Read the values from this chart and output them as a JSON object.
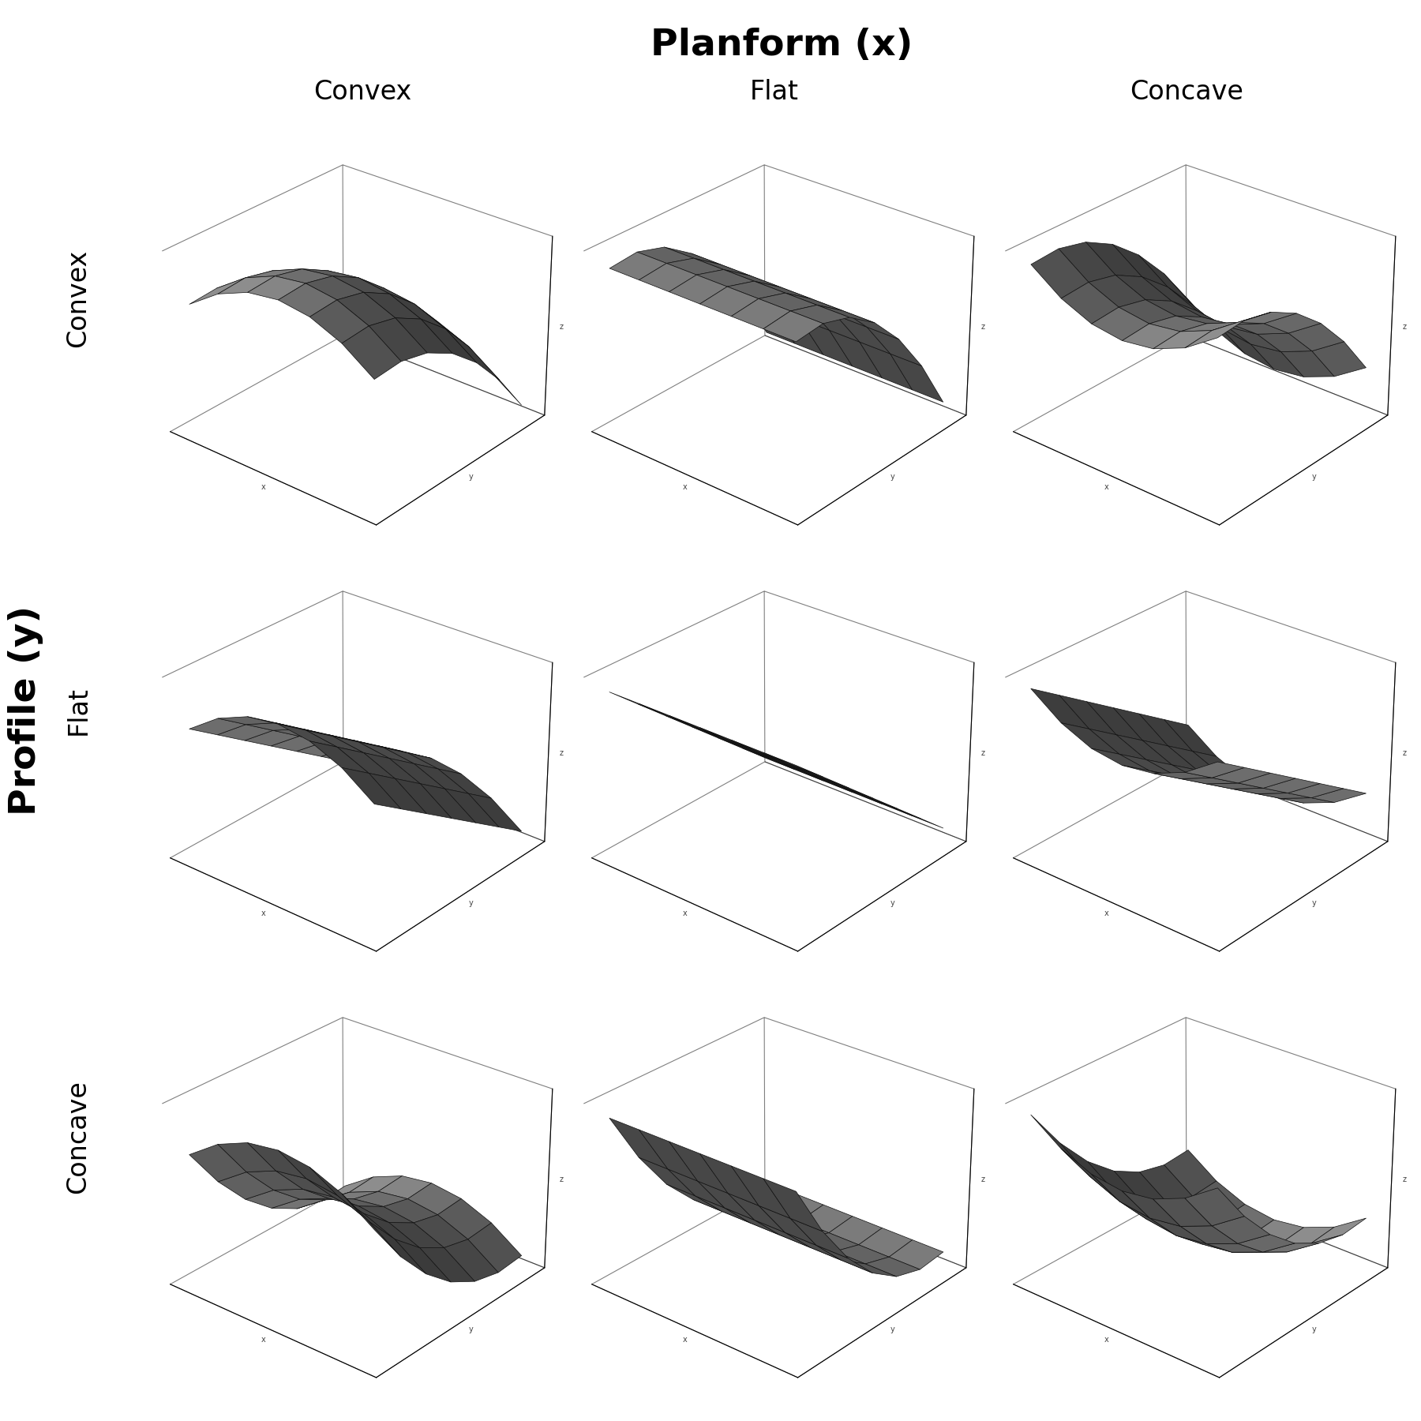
{
  "title_top": "Planform (x)",
  "title_left": "Profile (y)",
  "col_labels": [
    "Convex",
    "Flat",
    "Concave"
  ],
  "row_labels": [
    "Convex",
    "Flat",
    "Concave"
  ],
  "surface_color": "#999999",
  "edge_color": "#111111",
  "background_color": "#ffffff",
  "title_fontsize": 34,
  "label_fontsize": 24,
  "row_label_fontsize": 24,
  "elev": 28,
  "azim": -50,
  "grid_n": 7,
  "alpha": 1.0,
  "slope_strength": 1.5,
  "curve_strength": 1.0
}
